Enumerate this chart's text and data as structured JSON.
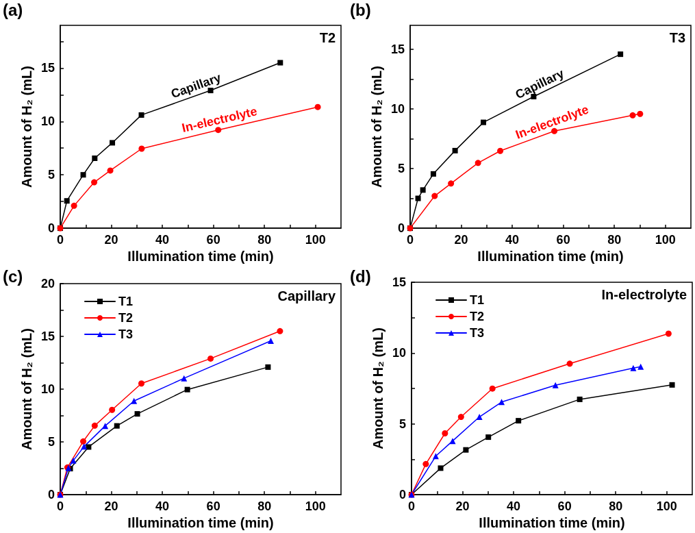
{
  "chart_data": [
    {
      "type": "line",
      "annotations": [
        "(a)",
        "T2"
      ],
      "xlabel": "Illumination time (min)",
      "ylabel": "Amount of H₂ (mL)",
      "xlim": [
        0,
        110
      ],
      "ylim": [
        0,
        19
      ],
      "xticks": [
        0,
        {
          "value": 10,
          "label": null
        },
        20,
        {
          "value": 30,
          "label": null
        },
        40,
        {
          "value": 50,
          "label": null
        },
        60,
        {
          "value": 70,
          "label": null
        },
        80,
        {
          "value": 90,
          "label": null
        },
        100
      ],
      "yticks": [
        0,
        {
          "value": 2.5,
          "label": null
        },
        5,
        {
          "value": 7.5,
          "label": null
        },
        10,
        {
          "value": 12.5,
          "label": null
        },
        15,
        {
          "value": 17.5,
          "label": null
        }
      ],
      "legend": false,
      "grid": false,
      "series": [
        {
          "name": "Capillary",
          "color": "#000000",
          "marker": "square",
          "x": [
            0,
            2.6,
            9.0,
            13.5,
            20.4,
            31.8,
            58.9,
            86.2
          ],
          "values": [
            0,
            2.56,
            5.0,
            6.55,
            8.0,
            10.6,
            12.9,
            15.5
          ]
        },
        {
          "name": "In-electrolyte",
          "color": "#ff0000",
          "marker": "circle",
          "x": [
            0,
            5.4,
            13.3,
            19.6,
            31.9,
            61.9,
            100.9
          ],
          "values": [
            0,
            2.1,
            4.3,
            5.4,
            7.45,
            9.2,
            11.35
          ]
        }
      ]
    },
    {
      "type": "line",
      "annotations": [
        "(b)",
        "T3"
      ],
      "xlabel": "Illumination time (min)",
      "ylabel": "Amount of H₂ (mL)",
      "xlim": [
        0,
        110
      ],
      "ylim": [
        0,
        17
      ],
      "xticks": [
        0,
        {
          "value": 10,
          "label": null
        },
        20,
        {
          "value": 30,
          "label": null
        },
        40,
        {
          "value": 50,
          "label": null
        },
        60,
        {
          "value": 70,
          "label": null
        },
        80,
        {
          "value": 90,
          "label": null
        },
        100
      ],
      "yticks": [
        0,
        {
          "value": 2.5,
          "label": null
        },
        5,
        {
          "value": 7.5,
          "label": null
        },
        10,
        {
          "value": 12.5,
          "label": null
        },
        15
      ],
      "legend": false,
      "grid": false,
      "series": [
        {
          "name": "Capillary",
          "color": "#000000",
          "marker": "square",
          "x": [
            0,
            3.1,
            5.0,
            9.1,
            17.6,
            28.7,
            48.4,
            82.4
          ],
          "values": [
            0,
            2.5,
            3.2,
            4.55,
            6.5,
            8.87,
            11.03,
            14.58
          ]
        },
        {
          "name": "In-electrolyte",
          "color": "#ff0000",
          "marker": "circle",
          "x": [
            0,
            9.6,
            16.0,
            26.6,
            35.3,
            56.5,
            87.2,
            90.1
          ],
          "values": [
            0,
            2.7,
            3.75,
            5.47,
            6.48,
            8.14,
            9.46,
            9.58
          ]
        }
      ]
    },
    {
      "type": "line",
      "annotations": [
        "(c)",
        "Capillary"
      ],
      "xlabel": "Illumination time (min)",
      "ylabel": "Amount of H₂ (mL)",
      "xlim": [
        0,
        110
      ],
      "ylim": [
        0,
        20
      ],
      "xticks": [
        0,
        {
          "value": 10,
          "label": null
        },
        20,
        {
          "value": 30,
          "label": null
        },
        40,
        {
          "value": 50,
          "label": null
        },
        60,
        {
          "value": 70,
          "label": null
        },
        80,
        {
          "value": 90,
          "label": null
        },
        100
      ],
      "yticks": [
        0,
        {
          "value": 2.5,
          "label": null
        },
        5,
        {
          "value": 7.5,
          "label": null
        },
        10,
        {
          "value": 12.5,
          "label": null
        },
        15,
        {
          "value": 17.5,
          "label": null
        },
        20
      ],
      "legend": "top left",
      "grid": false,
      "series": [
        {
          "name": "T1",
          "color": "#000000",
          "marker": "square",
          "x": [
            0,
            3.9,
            11.1,
            22.2,
            30.2,
            49.8,
            81.4
          ],
          "values": [
            0,
            2.47,
            4.52,
            6.52,
            7.66,
            9.96,
            12.09
          ]
        },
        {
          "name": "T2",
          "color": "#ff0000",
          "marker": "circle",
          "x": [
            0,
            2.8,
            9.0,
            13.5,
            20.3,
            31.8,
            58.9,
            86.1
          ],
          "values": [
            0,
            2.58,
            5.05,
            6.54,
            8.04,
            10.54,
            12.9,
            15.5
          ]
        },
        {
          "name": "T3",
          "color": "#0000ff",
          "marker": "triangle",
          "x": [
            0,
            3.2,
            5.1,
            9.3,
            17.6,
            28.9,
            48.5,
            82.5
          ],
          "values": [
            0,
            2.54,
            3.23,
            4.56,
            6.52,
            8.88,
            11.03,
            14.58
          ]
        }
      ]
    },
    {
      "type": "line",
      "annotations": [
        "(d)",
        "In-electrolyte"
      ],
      "xlabel": "Illumination time (min)",
      "ylabel": "Amount of H₂ (mL)",
      "xlim": [
        0,
        110
      ],
      "ylim": [
        0,
        15
      ],
      "xticks": [
        0,
        {
          "value": 10,
          "label": null
        },
        20,
        {
          "value": 30,
          "label": null
        },
        40,
        {
          "value": 50,
          "label": null
        },
        60,
        {
          "value": 70,
          "label": null
        },
        80,
        {
          "value": 90,
          "label": null
        },
        100
      ],
      "yticks": [
        0,
        {
          "value": 2.5,
          "label": null
        },
        5,
        {
          "value": 7.5,
          "label": null
        },
        10,
        {
          "value": 12.5,
          "label": null
        },
        15
      ],
      "legend": "top left",
      "grid": false,
      "series": [
        {
          "name": "T1",
          "color": "#000000",
          "marker": "square",
          "x": [
            0,
            11.4,
            21.3,
            30.1,
            41.9,
            65.9,
            102.1
          ],
          "values": [
            0,
            1.87,
            3.16,
            4.06,
            5.22,
            6.73,
            7.75
          ]
        },
        {
          "name": "T2",
          "color": "#ff0000",
          "marker": "circle",
          "x": [
            0,
            5.6,
            13.1,
            19.4,
            31.7,
            62.0,
            100.7
          ],
          "values": [
            0,
            2.16,
            4.33,
            5.49,
            7.49,
            9.25,
            11.37
          ]
        },
        {
          "name": "T3",
          "color": "#0000ff",
          "marker": "triangle",
          "x": [
            0,
            9.5,
            16.1,
            26.6,
            35.3,
            56.4,
            86.9,
            89.8
          ],
          "values": [
            0,
            2.72,
            3.79,
            5.49,
            6.54,
            7.73,
            8.94,
            9.04
          ]
        }
      ]
    }
  ]
}
